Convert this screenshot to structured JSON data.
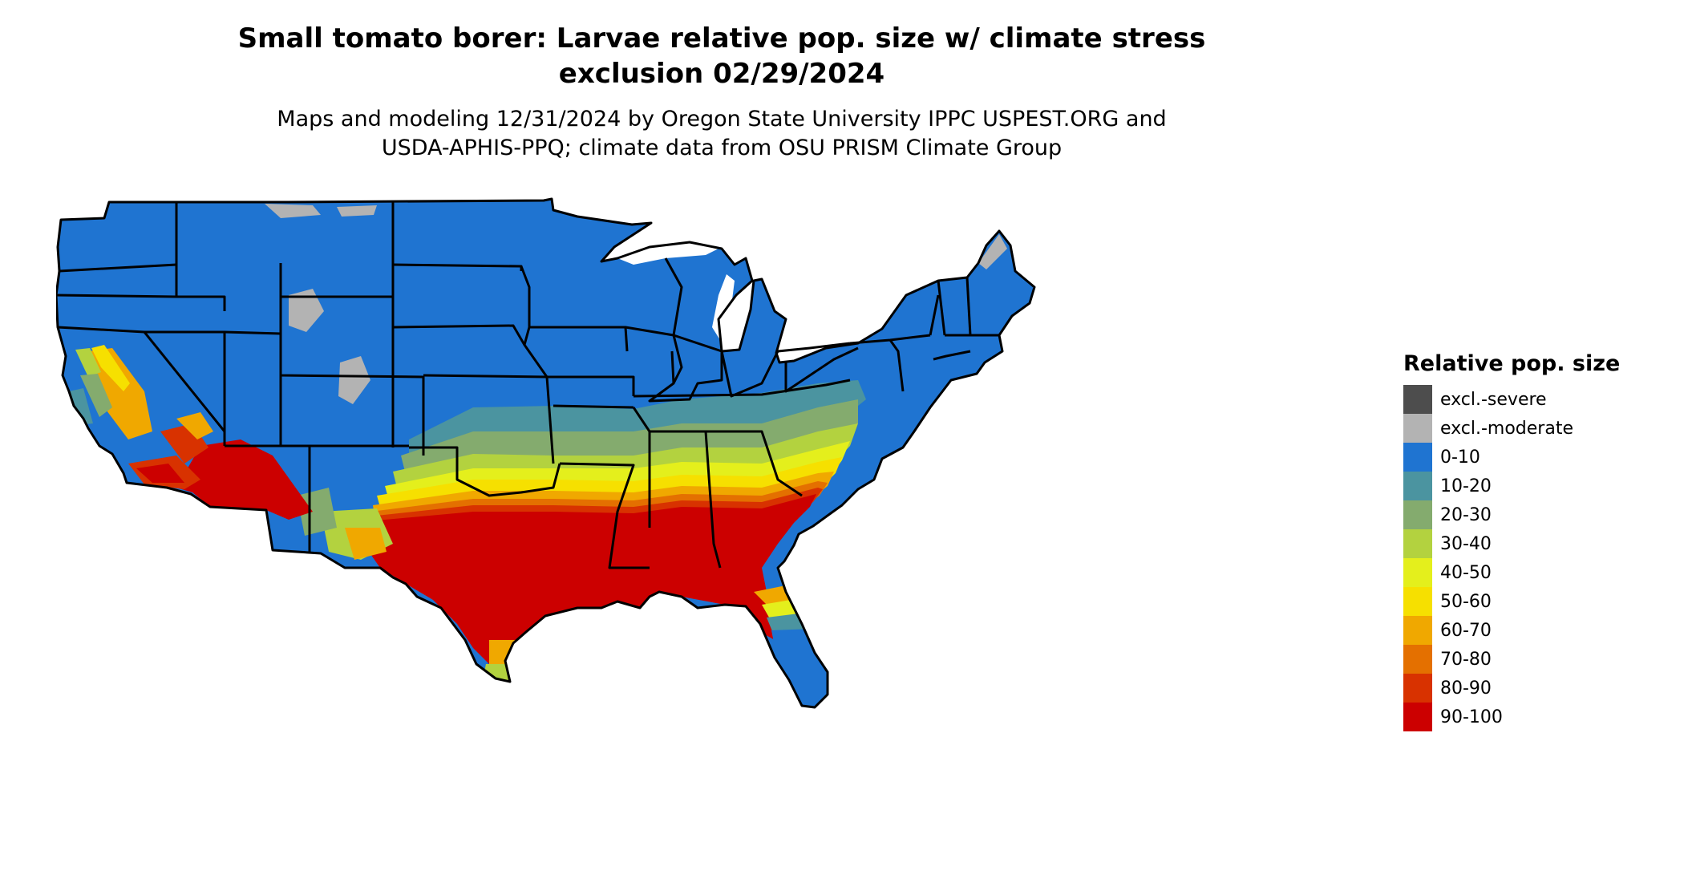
{
  "title": {
    "line1": "Small tomato borer: Larvae relative pop. size w/ climate stress",
    "line2": "exclusion 02/29/2024"
  },
  "subtitle": {
    "line1": "Maps and modeling 12/31/2024 by Oregon State University IPPC USPEST.ORG and",
    "line2": "USDA-APHIS-PPQ; climate data from OSU PRISM Climate Group"
  },
  "legend": {
    "title": "Relative pop. size",
    "items": [
      {
        "label": "excl.-severe",
        "color": "#4d4d4d"
      },
      {
        "label": "excl.-moderate",
        "color": "#b3b3b3"
      },
      {
        "label": "0-10",
        "color": "#1f74d1"
      },
      {
        "label": "10-20",
        "color": "#4b94a0"
      },
      {
        "label": "20-30",
        "color": "#84ab6e"
      },
      {
        "label": "30-40",
        "color": "#b3d23f"
      },
      {
        "label": "40-50",
        "color": "#e4ef1c"
      },
      {
        "label": "50-60",
        "color": "#f6e000"
      },
      {
        "label": "60-70",
        "color": "#f0a800"
      },
      {
        "label": "70-80",
        "color": "#e47000"
      },
      {
        "label": "80-90",
        "color": "#d83200"
      },
      {
        "label": "90-100",
        "color": "#cc0000"
      }
    ]
  },
  "map": {
    "region": "Contiguous United States",
    "border_color": "#000000"
  }
}
